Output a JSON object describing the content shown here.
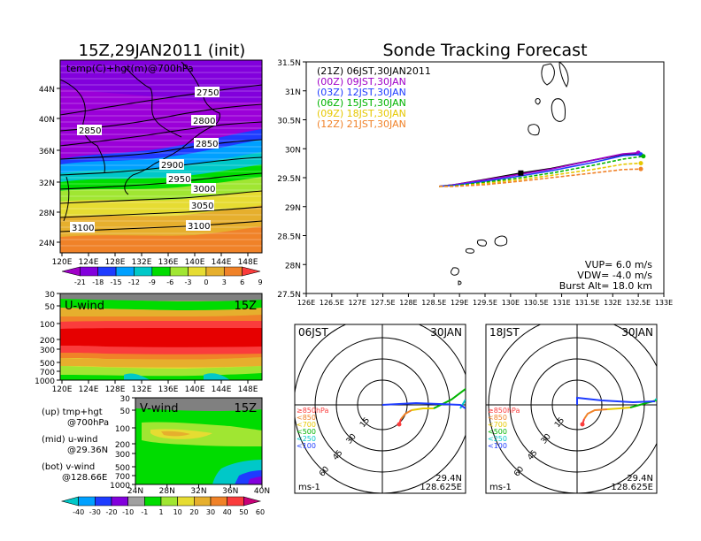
{
  "left_title": "15Z,29JAN2011 (init)",
  "right_title": "Sonde Tracking Forecast",
  "top_map": {
    "field_label": "temp(C)+hgt(m)@700hPa",
    "xticks": [
      "120E",
      "124E",
      "128E",
      "132E",
      "136E",
      "140E",
      "144E",
      "148E"
    ],
    "yticks": [
      "24N",
      "28N",
      "32N",
      "36N",
      "40N",
      "44N"
    ],
    "contours": [
      "2750",
      "2800",
      "2850",
      "2850",
      "2900",
      "2950",
      "3000",
      "3050",
      "3100",
      "3100"
    ],
    "colorbar": [
      "-21",
      "-18",
      "-15",
      "-12",
      "-9",
      "-6",
      "-3",
      "0",
      "3",
      "6",
      "9"
    ],
    "colors": [
      "#a000c8",
      "#8200dc",
      "#1e3cff",
      "#00a0ff",
      "#00c8c8",
      "#00dc00",
      "#a0e632",
      "#e6dc32",
      "#e6af2d",
      "#f08228",
      "#fa3c3c"
    ]
  },
  "u_wind": {
    "label": "U-wind",
    "time": "15Z",
    "yticks": [
      "30",
      "50",
      "100",
      "200",
      "300",
      "500",
      "700",
      "1000"
    ],
    "xticks": [
      "120E",
      "124E",
      "128E",
      "132E",
      "136E",
      "140E",
      "144E",
      "148E"
    ]
  },
  "v_wind": {
    "label": "V-wind",
    "time": "15Z",
    "yticks": [
      "30",
      "50",
      "100",
      "200",
      "300",
      "500",
      "700",
      "1000"
    ],
    "xticks": [
      "24N",
      "28N",
      "32N",
      "36N",
      "40N"
    ]
  },
  "wind_colorbar": [
    "-40",
    "-30",
    "-20",
    "-10",
    "-1",
    "1",
    "10",
    "20",
    "30",
    "40",
    "50",
    "60"
  ],
  "wind_colors": [
    "#00c8c8",
    "#00a0ff",
    "#1e3cff",
    "#8200dc",
    "#a0a0a0",
    "#00dc00",
    "#a0e632",
    "#e6dc32",
    "#e6af2d",
    "#f08228",
    "#fa3c3c",
    "#c80078"
  ],
  "legend_notes": [
    {
      "a": "(up) tmp+hgt",
      "b": "@700hPa"
    },
    {
      "a": "(mid) u-wind",
      "b": "@29.36N"
    },
    {
      "a": "(bot) v-wind",
      "b": "@128.66E"
    }
  ],
  "chart_data": {
    "type": "line",
    "title": "Sonde Tracking Forecast",
    "xticks": [
      "126E",
      "126.5E",
      "127E",
      "127.5E",
      "128E",
      "128.5E",
      "129E",
      "129.5E",
      "130E",
      "130.5E",
      "131E",
      "131.5E",
      "132E",
      "132.5E",
      "133E"
    ],
    "yticks": [
      "27.5N",
      "28N",
      "28.5N",
      "29N",
      "29.5N",
      "30N",
      "30.5N",
      "31N",
      "31.5N"
    ],
    "xlim": [
      126,
      133
    ],
    "ylim": [
      27.5,
      31.5
    ],
    "series": [
      {
        "name": "(21Z) 06JST,30JAN2011",
        "color": "#000000",
        "dashed": false,
        "x": [
          128.6,
          128.9,
          129.5,
          130.2,
          130.8,
          131.6,
          132.2,
          132.5
        ],
        "y": [
          29.35,
          29.38,
          29.47,
          29.58,
          29.66,
          29.8,
          29.9,
          29.92
        ]
      },
      {
        "name": "(00Z) 09JST,30JAN",
        "color": "#a000c8",
        "dashed": false,
        "x": [
          128.6,
          128.9,
          129.5,
          130.2,
          130.8,
          131.6,
          132.2,
          132.5
        ],
        "y": [
          29.35,
          29.38,
          29.46,
          29.56,
          29.65,
          29.8,
          29.91,
          29.93
        ]
      },
      {
        "name": "(03Z) 12JST,30JAN",
        "color": "#1e3cff",
        "dashed": false,
        "x": [
          128.6,
          128.9,
          129.5,
          130.2,
          130.8,
          131.6,
          132.2,
          132.55
        ],
        "y": [
          29.35,
          29.37,
          29.44,
          29.53,
          29.62,
          29.76,
          29.88,
          29.9
        ]
      },
      {
        "name": "(06Z) 15JST,30JAN",
        "color": "#00b400",
        "dashed": true,
        "x": [
          128.6,
          128.9,
          129.5,
          130.2,
          130.8,
          131.6,
          132.2,
          132.6
        ],
        "y": [
          29.35,
          29.36,
          29.42,
          29.5,
          29.58,
          29.71,
          29.82,
          29.87
        ]
      },
      {
        "name": "(09Z) 18JST,30JAN",
        "color": "#e6c800",
        "dashed": true,
        "x": [
          128.6,
          128.9,
          129.5,
          130.2,
          130.8,
          131.6,
          132.2,
          132.55
        ],
        "y": [
          29.35,
          29.35,
          29.4,
          29.47,
          29.54,
          29.64,
          29.73,
          29.75
        ]
      },
      {
        "name": "(12Z) 21JST,30JAN",
        "color": "#f08228",
        "dashed": true,
        "x": [
          128.6,
          128.9,
          129.5,
          130.2,
          130.8,
          131.6,
          132.2,
          132.55
        ],
        "y": [
          29.35,
          29.35,
          29.38,
          29.44,
          29.5,
          29.58,
          29.64,
          29.65
        ]
      }
    ],
    "annotations": [
      "VUP= 6.0 m/s",
      "VDW= -4.0 m/s",
      "Burst Alt= 18.0 km"
    ]
  },
  "hodo_left": {
    "time": "06JST",
    "date": "30JAN",
    "unit": "ms-1",
    "lat": "29.4N",
    "lon": "128.625E",
    "rings": [
      "15",
      "30",
      "45",
      "60"
    ]
  },
  "hodo_right": {
    "time": "18JST",
    "date": "30JAN",
    "unit": "ms-1",
    "lat": "29.4N",
    "lon": "128.625E",
    "rings": [
      "15",
      "30",
      "45",
      "60"
    ]
  },
  "hodo_levels": [
    {
      "label": "≥850hPa",
      "color": "#fa3c3c"
    },
    {
      "label": "<850",
      "color": "#f08228"
    },
    {
      "label": "<700",
      "color": "#e6c800"
    },
    {
      "label": "<500",
      "color": "#00b400"
    },
    {
      "label": "<250",
      "color": "#00c8c8"
    },
    {
      "label": "<100",
      "color": "#1e3cff"
    }
  ]
}
